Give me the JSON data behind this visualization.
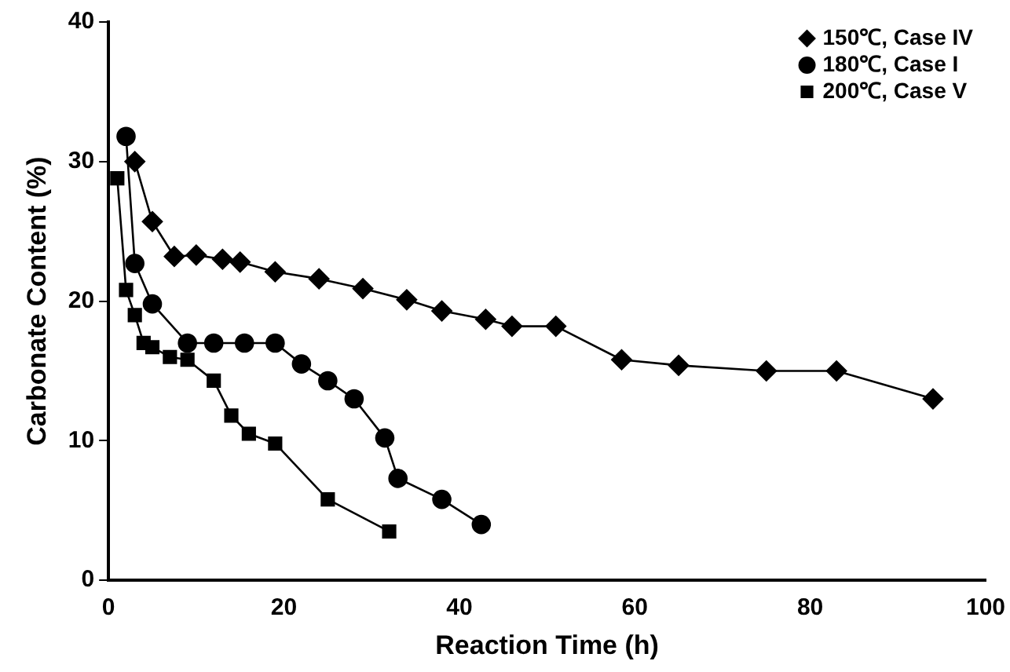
{
  "chart_data": {
    "type": "line",
    "xlabel": "Reaction Time (h)",
    "ylabel": "Carbonate Content (%)",
    "xlim": [
      0,
      100
    ],
    "xticks": [
      0,
      20,
      40,
      60,
      80,
      100
    ],
    "ylim": [
      0,
      40
    ],
    "yticks": [
      0,
      10,
      20,
      30,
      40
    ],
    "grid": false,
    "legend": "top right",
    "series": [
      {
        "name": "150℃, Case IV",
        "color": "#000000",
        "marker": "diamond",
        "x": [
          3,
          5,
          7.5,
          10,
          13,
          15,
          19,
          24,
          29,
          34,
          38,
          43,
          46,
          51,
          58.5,
          65,
          75,
          83,
          94
        ],
        "values": [
          30,
          25.7,
          23.2,
          23.3,
          23,
          22.8,
          22.1,
          21.6,
          20.9,
          20.1,
          19.3,
          18.7,
          18.2,
          18.2,
          15.8,
          15.4,
          15,
          15,
          13
        ]
      },
      {
        "name": "180℃, Case I",
        "color": "#000000",
        "marker": "circle",
        "x": [
          2,
          3,
          5,
          9,
          12,
          15.5,
          19,
          22,
          25,
          28,
          31.5,
          33,
          38,
          42.5
        ],
        "values": [
          31.8,
          22.7,
          19.8,
          17,
          17,
          17,
          17,
          15.5,
          14.3,
          13,
          10.2,
          7.3,
          5.8,
          4
        ]
      },
      {
        "name": "200℃, Case V",
        "color": "#000000",
        "marker": "square",
        "x": [
          1,
          2,
          3,
          4,
          5,
          7,
          9,
          12,
          14,
          16,
          19,
          25,
          32
        ],
        "values": [
          28.8,
          20.8,
          19,
          17,
          16.7,
          16,
          15.8,
          14.3,
          11.8,
          10.5,
          9.8,
          5.8,
          3.5
        ]
      }
    ]
  }
}
